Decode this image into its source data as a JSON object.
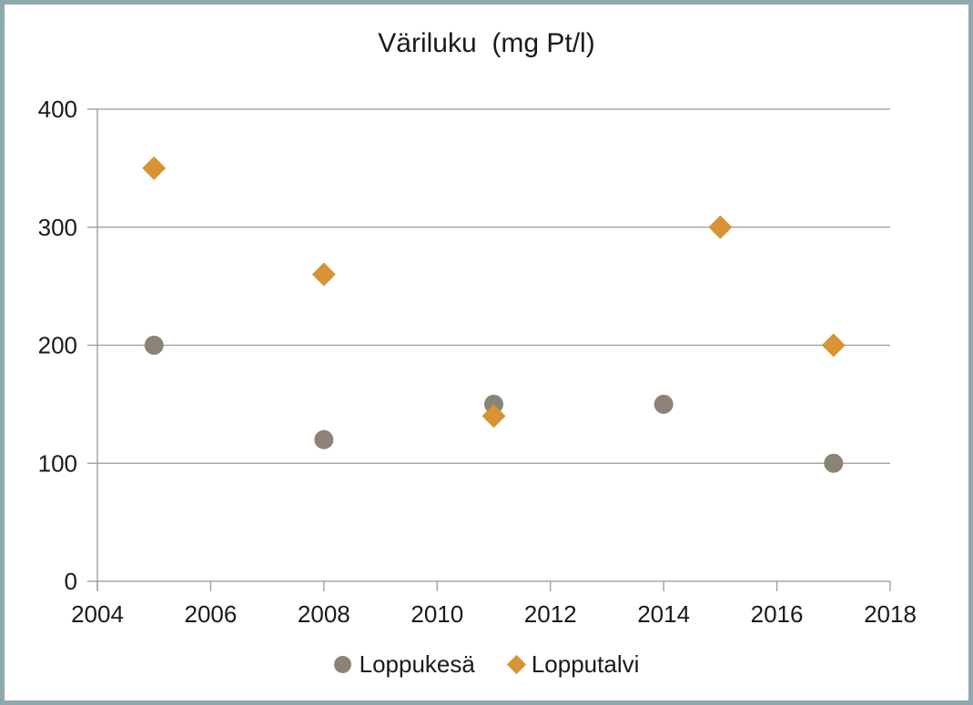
{
  "colors": {
    "frame_border": "#8FA8AD",
    "grid": "#999999",
    "axis": "#999999",
    "text": "#1A1A1A",
    "background": "#FFFFFF"
  },
  "chart_data": {
    "type": "scatter",
    "title": "Väriluku  (mg Pt/l)",
    "xlabel": "",
    "ylabel": "",
    "xlim": [
      2004,
      2018
    ],
    "ylim": [
      0,
      400
    ],
    "x_ticks": [
      2004,
      2006,
      2008,
      2010,
      2012,
      2014,
      2016,
      2018
    ],
    "y_ticks": [
      0,
      100,
      200,
      300,
      400
    ],
    "grid": "horizontal-only",
    "legend_position": "bottom",
    "series": [
      {
        "name": "Loppukesä",
        "marker": "circle",
        "color": "#8C8377",
        "points": [
          {
            "x": 2005,
            "y": 200
          },
          {
            "x": 2008,
            "y": 120
          },
          {
            "x": 2011,
            "y": 150
          },
          {
            "x": 2014,
            "y": 150
          },
          {
            "x": 2017,
            "y": 100
          }
        ]
      },
      {
        "name": "Lopputalvi",
        "marker": "diamond",
        "color": "#D79435",
        "points": [
          {
            "x": 2005,
            "y": 350
          },
          {
            "x": 2008,
            "y": 260
          },
          {
            "x": 2011,
            "y": 140
          },
          {
            "x": 2015,
            "y": 300
          },
          {
            "x": 2017,
            "y": 200
          }
        ]
      }
    ]
  }
}
